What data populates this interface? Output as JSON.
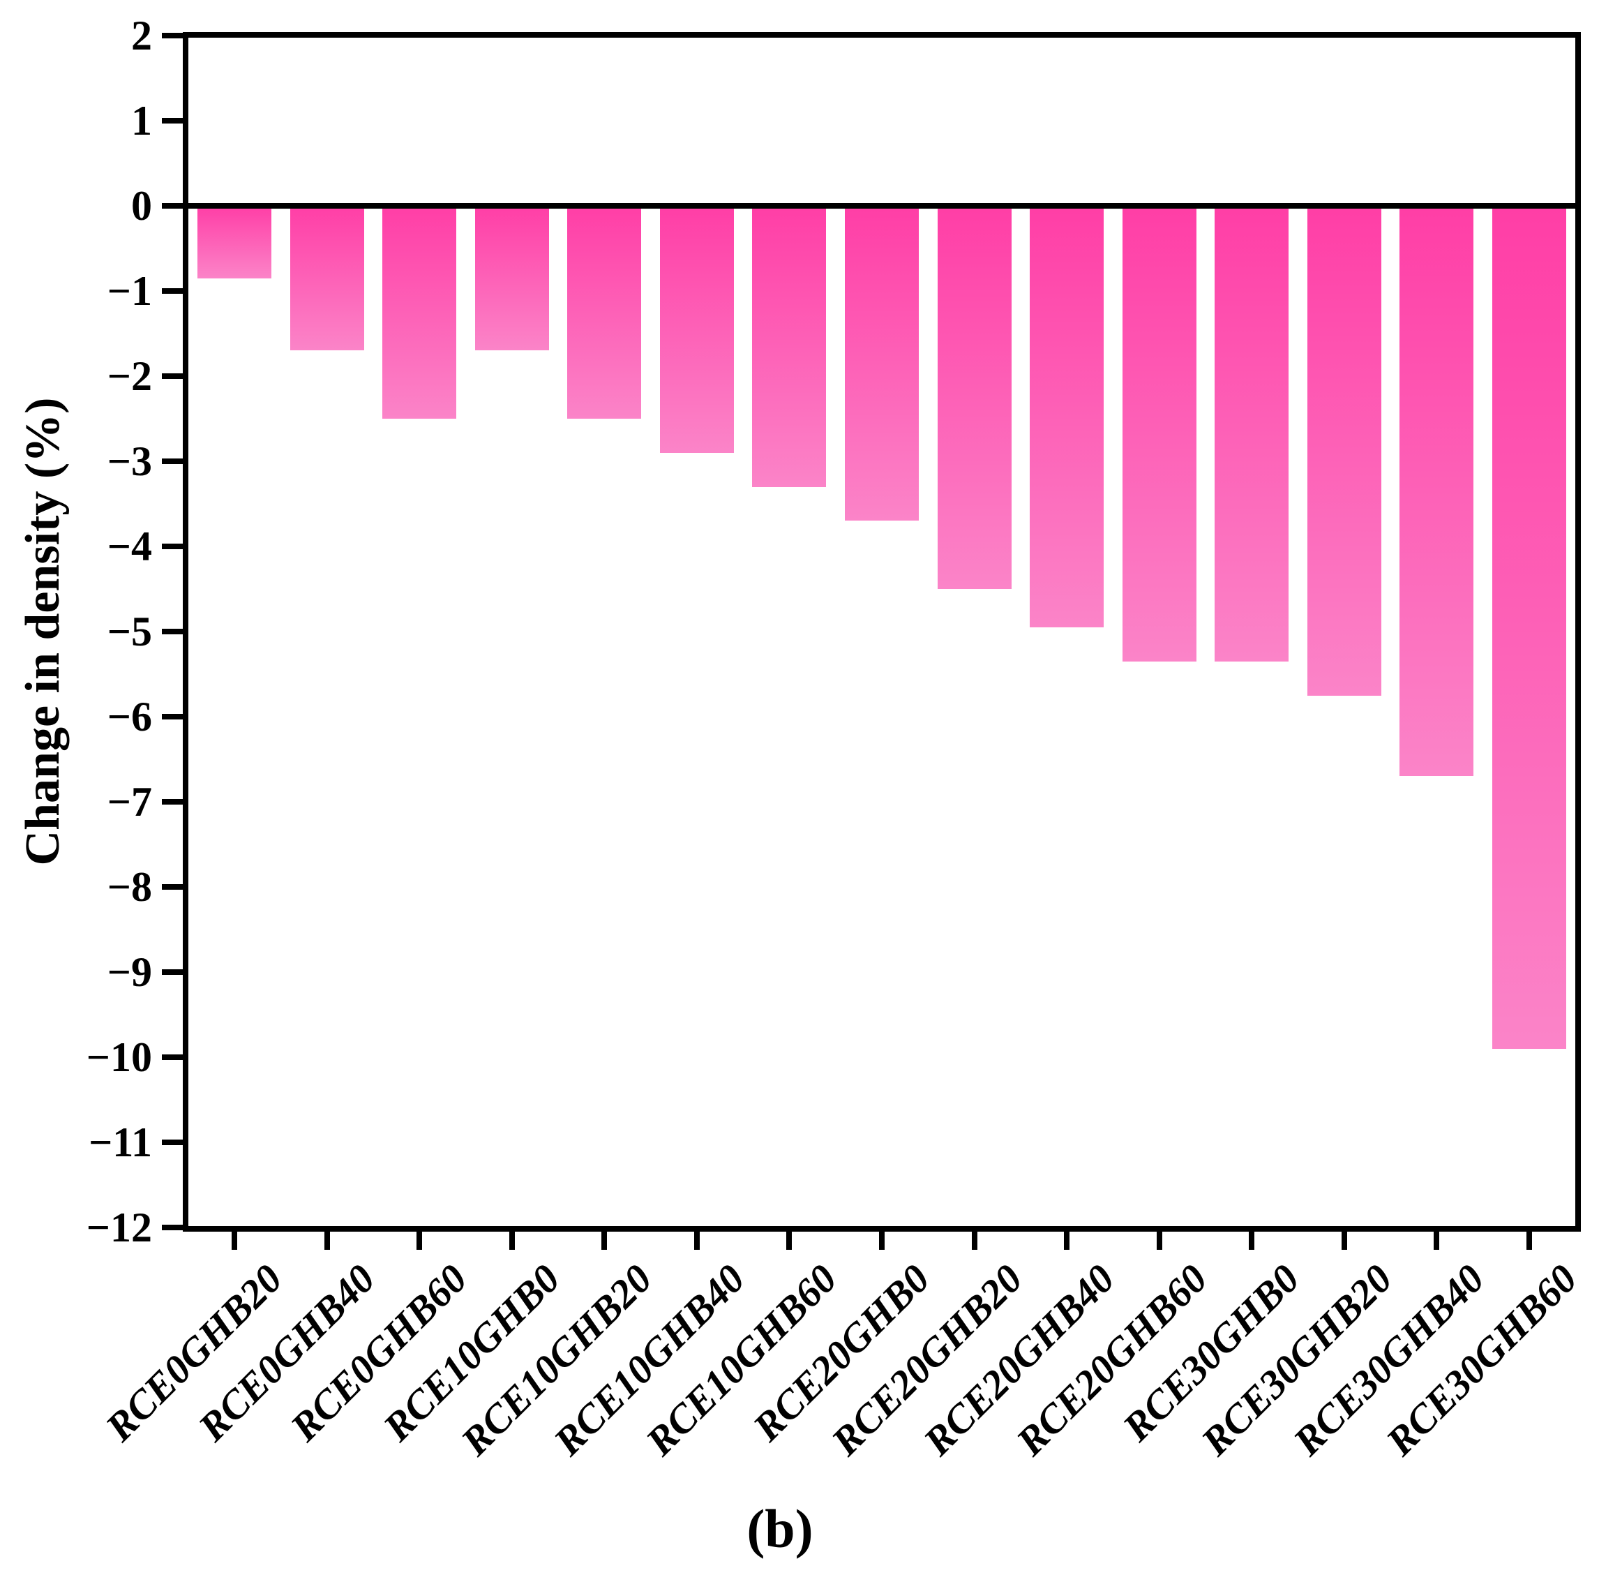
{
  "chart_data": {
    "type": "bar",
    "title": "",
    "ylabel": "Change in density (%)",
    "xlabel": "",
    "caption": "(b)",
    "categories": [
      "RCE0GHB20",
      "RCE0GHB40",
      "RCE0GHB60",
      "RCE10GHB0",
      "RCE10GHB20",
      "RCE10GHB40",
      "RCE10GHB60",
      "RCE20GHB0",
      "RCE20GHB20",
      "RCE20GHB40",
      "RCE20GHB60",
      "RCE30GHB0",
      "RCE30GHB20",
      "RCE30GHB40",
      "RCE30GHB60"
    ],
    "values": [
      -0.85,
      -1.7,
      -2.5,
      -1.7,
      -2.5,
      -2.9,
      -3.3,
      -3.7,
      -4.5,
      -4.95,
      -5.35,
      -5.35,
      -5.75,
      -6.7,
      -9.9
    ],
    "ylim": [
      2,
      -12
    ],
    "ytick_labels": [
      "2",
      "1",
      "0",
      "−1",
      "−2",
      "−3",
      "−4",
      "−5",
      "−6",
      "−7",
      "−8",
      "−9",
      "−10",
      "−11",
      "−12"
    ],
    "ytick_values": [
      2,
      1,
      0,
      -1,
      -2,
      -3,
      -4,
      -5,
      -6,
      -7,
      -8,
      -9,
      -10,
      -11,
      -12
    ],
    "grid": false,
    "legend": null,
    "colors": {
      "bar_gradient_top": "#FF3EA6",
      "bar_gradient_bottom": "#FB84C8",
      "axis": "#000000",
      "background": "#FFFFFF"
    }
  }
}
